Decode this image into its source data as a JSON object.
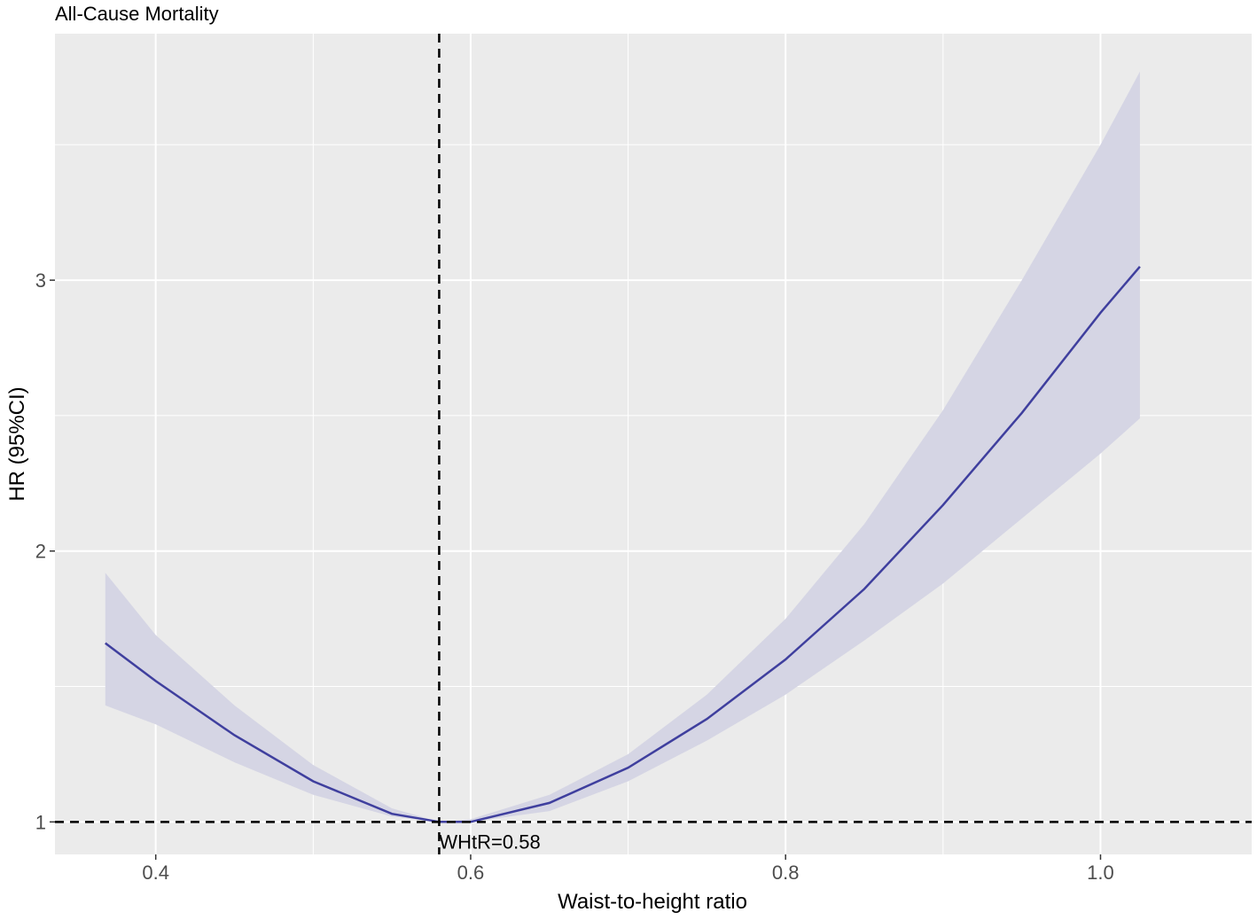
{
  "chart_data": {
    "type": "line",
    "title": "All-Cause Mortality",
    "xlabel": "Waist-to-height ratio",
    "ylabel": "HR (95%CI)",
    "xlim": [
      0.336,
      1.096
    ],
    "ylim": [
      0.88,
      3.91
    ],
    "x_ticks": [
      0.4,
      0.6,
      0.8,
      1.0
    ],
    "x_tick_labels": [
      "0.4",
      "0.6",
      "0.8",
      "1.0"
    ],
    "x_minor_ticks": [
      0.5,
      0.7,
      0.9
    ],
    "y_ticks": [
      1,
      2,
      3
    ],
    "y_tick_labels": [
      "1",
      "2",
      "3"
    ],
    "y_minor_ticks": [
      1.5,
      2.5,
      3.5
    ],
    "grid": true,
    "reference_lines": {
      "vertical_x": 0.58,
      "horizontal_y": 1
    },
    "annotation": {
      "text": "WHtR=0.58",
      "x": 0.58,
      "y": 1
    },
    "series": [
      {
        "x": [
          0.368,
          0.4,
          0.45,
          0.5,
          0.55,
          0.58,
          0.6,
          0.65,
          0.7,
          0.75,
          0.8,
          0.85,
          0.9,
          0.95,
          1.0,
          1.025
        ],
        "y": [
          1.66,
          1.52,
          1.32,
          1.15,
          1.03,
          1.0,
          1.0,
          1.07,
          1.2,
          1.38,
          1.6,
          1.86,
          2.17,
          2.51,
          2.88,
          3.05
        ],
        "lower": [
          1.43,
          1.36,
          1.22,
          1.1,
          1.02,
          1.0,
          1.0,
          1.04,
          1.15,
          1.3,
          1.47,
          1.67,
          1.88,
          2.12,
          2.36,
          2.49
        ],
        "upper": [
          1.92,
          1.69,
          1.43,
          1.21,
          1.05,
          1.0,
          1.01,
          1.1,
          1.25,
          1.47,
          1.75,
          2.1,
          2.52,
          3.0,
          3.5,
          3.77
        ]
      }
    ],
    "colors": {
      "line": "#3f3f9e",
      "band": "#d5d5e4",
      "panel": "#ebebeb",
      "grid": "#ffffff",
      "reference": "#000000"
    }
  }
}
